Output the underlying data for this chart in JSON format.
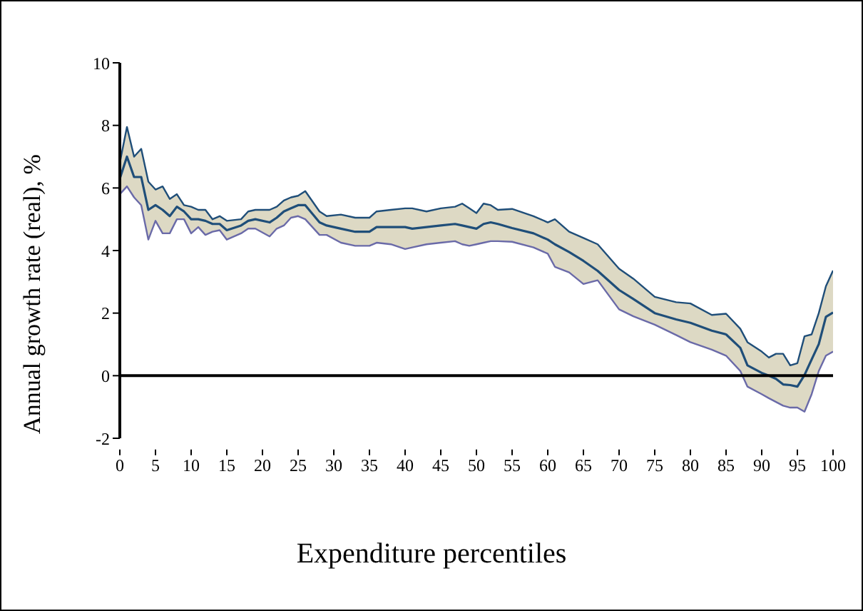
{
  "chart_data": {
    "type": "line",
    "xlabel": "Expenditure percentiles",
    "ylabel": "Annual growth rate (real), %",
    "xlim": [
      0,
      100
    ],
    "xticks": [
      0,
      5,
      10,
      15,
      20,
      25,
      30,
      35,
      40,
      45,
      50,
      55,
      60,
      65,
      70,
      75,
      80,
      85,
      90,
      95,
      100
    ],
    "ref_lines": [
      {
        "axis": "y",
        "value": 0,
        "color": "#000000"
      }
    ],
    "ylim": [
      -2,
      10
    ],
    "yticks": [
      -2,
      0,
      2,
      4,
      6,
      8,
      10
    ],
    "legend": false,
    "marker": "none",
    "line_style": "solid",
    "x": [
      0,
      1,
      2,
      3,
      4,
      5,
      6,
      7,
      8,
      9,
      10,
      11,
      12,
      13,
      14,
      15,
      17,
      18,
      19,
      21,
      22,
      23,
      24,
      25,
      26,
      28,
      29,
      31,
      33,
      35,
      36,
      38,
      40,
      41,
      43,
      45,
      47,
      48,
      49,
      50,
      51,
      52,
      53,
      55,
      58,
      60,
      61,
      63,
      65,
      67,
      70,
      72,
      75,
      78,
      80,
      83,
      85,
      87,
      88,
      90,
      91,
      92,
      93,
      94,
      95,
      96,
      97,
      98,
      99,
      100
    ],
    "series": [
      {
        "color": "#1f4e79",
        "values": [
          6.3,
          7.0,
          6.35,
          6.35,
          5.3,
          5.45,
          5.3,
          5.1,
          5.4,
          5.25,
          5.0,
          5.0,
          4.95,
          4.85,
          4.85,
          4.65,
          4.8,
          4.95,
          5.0,
          4.9,
          5.05,
          5.25,
          5.35,
          5.45,
          5.45,
          4.9,
          4.8,
          4.7,
          4.6,
          4.6,
          4.75,
          4.75,
          4.75,
          4.7,
          4.75,
          4.8,
          4.85,
          4.8,
          4.75,
          4.7,
          4.85,
          4.9,
          4.85,
          4.72,
          4.55,
          4.35,
          4.2,
          3.95,
          3.67,
          3.35,
          2.74,
          2.45,
          2.0,
          1.8,
          1.69,
          1.44,
          1.32,
          0.89,
          0.33,
          0.09,
          0.0,
          -0.1,
          -0.28,
          -0.3,
          -0.35,
          0.02,
          0.52,
          1.01,
          1.88,
          2.02
        ],
        "lower": [
          5.8,
          6.05,
          5.7,
          5.45,
          4.35,
          4.95,
          4.55,
          4.55,
          5.0,
          5.0,
          4.55,
          4.75,
          4.5,
          4.6,
          4.65,
          4.35,
          4.55,
          4.7,
          4.7,
          4.45,
          4.7,
          4.8,
          5.05,
          5.1,
          5.0,
          4.5,
          4.5,
          4.25,
          4.15,
          4.15,
          4.25,
          4.2,
          4.05,
          4.1,
          4.2,
          4.25,
          4.3,
          4.2,
          4.15,
          4.2,
          4.25,
          4.3,
          4.3,
          4.28,
          4.1,
          3.9,
          3.48,
          3.3,
          2.93,
          3.05,
          2.12,
          1.9,
          1.63,
          1.3,
          1.07,
          0.83,
          0.64,
          0.15,
          -0.35,
          -0.59,
          -0.72,
          -0.84,
          -0.96,
          -1.02,
          -1.02,
          -1.15,
          -0.59,
          0.15,
          0.64,
          0.77
        ],
        "upper": [
          6.8,
          7.95,
          7.0,
          7.25,
          6.2,
          5.95,
          6.05,
          5.65,
          5.8,
          5.45,
          5.4,
          5.3,
          5.3,
          5.0,
          5.1,
          4.95,
          5.0,
          5.25,
          5.3,
          5.3,
          5.4,
          5.6,
          5.7,
          5.75,
          5.9,
          5.25,
          5.1,
          5.15,
          5.05,
          5.05,
          5.25,
          5.3,
          5.35,
          5.35,
          5.25,
          5.35,
          5.4,
          5.5,
          5.35,
          5.2,
          5.5,
          5.45,
          5.3,
          5.33,
          5.1,
          4.9,
          5.0,
          4.6,
          4.4,
          4.2,
          3.42,
          3.1,
          2.52,
          2.35,
          2.31,
          1.94,
          1.98,
          1.5,
          1.07,
          0.77,
          0.58,
          0.7,
          0.7,
          0.33,
          0.4,
          1.26,
          1.32,
          2.0,
          2.86,
          3.36
        ]
      },
      {
        "color": "#1f4e79",
        "values": [
          6.8,
          7.95,
          7.0,
          7.25,
          6.2,
          5.95,
          6.05,
          5.65,
          5.8,
          5.45,
          5.4,
          5.3,
          5.3,
          5.0,
          5.1,
          4.95,
          5.0,
          5.25,
          5.3,
          5.3,
          5.4,
          5.6,
          5.7,
          5.75,
          5.9,
          5.25,
          5.1,
          5.15,
          5.05,
          5.05,
          5.25,
          5.3,
          5.35,
          5.35,
          5.25,
          5.35,
          5.4,
          5.5,
          5.35,
          5.2,
          5.5,
          5.45,
          5.3,
          5.33,
          5.1,
          4.9,
          5.0,
          4.6,
          4.4,
          4.2,
          3.42,
          3.1,
          2.52,
          2.35,
          2.31,
          1.94,
          1.98,
          1.5,
          1.07,
          0.77,
          0.58,
          0.7,
          0.7,
          0.33,
          0.4,
          1.26,
          1.32,
          2.0,
          2.86,
          3.36
        ]
      },
      {
        "color": "#6a6aa8",
        "values": [
          5.8,
          6.05,
          5.7,
          5.45,
          4.35,
          4.95,
          4.55,
          4.55,
          5.0,
          5.0,
          4.55,
          4.75,
          4.5,
          4.6,
          4.65,
          4.35,
          4.55,
          4.7,
          4.7,
          4.45,
          4.7,
          4.8,
          5.05,
          5.1,
          5.0,
          4.5,
          4.5,
          4.25,
          4.15,
          4.15,
          4.25,
          4.2,
          4.05,
          4.1,
          4.2,
          4.25,
          4.3,
          4.2,
          4.15,
          4.2,
          4.25,
          4.3,
          4.3,
          4.28,
          4.1,
          3.9,
          3.48,
          3.3,
          2.93,
          3.05,
          2.12,
          1.9,
          1.63,
          1.3,
          1.07,
          0.83,
          0.64,
          0.15,
          -0.35,
          -0.59,
          -0.72,
          -0.84,
          -0.96,
          -1.02,
          -1.02,
          -1.15,
          -0.59,
          0.15,
          0.64,
          0.77
        ]
      }
    ]
  }
}
